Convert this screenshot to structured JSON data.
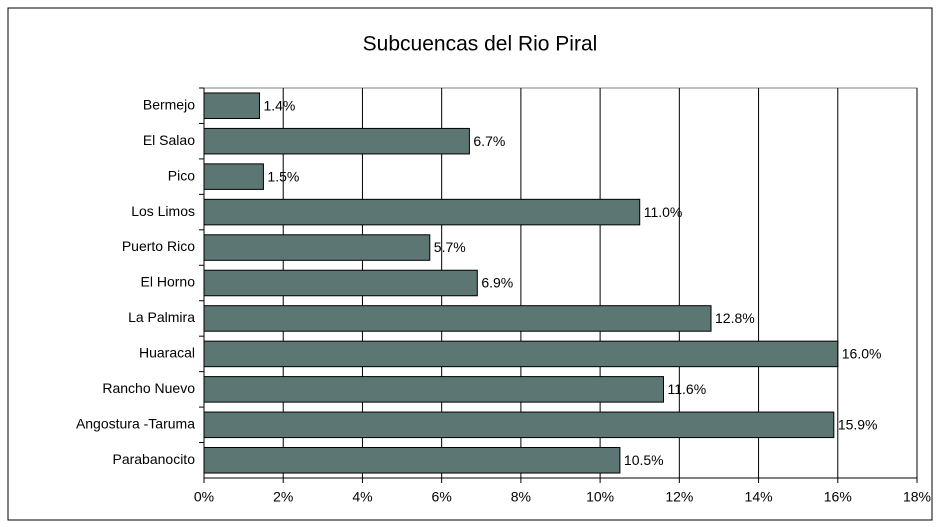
{
  "chart_data": {
    "type": "bar",
    "orientation": "horizontal",
    "title": "Subcuencas del Rio Piral",
    "categories": [
      "Bermejo",
      "El Salao",
      "Pico",
      "Los Limos",
      "Puerto Rico",
      "El Horno",
      "La Palmira",
      "Huaracal",
      "Rancho Nuevo",
      "Angostura -Taruma",
      "Parabanocito"
    ],
    "values": [
      1.4,
      6.7,
      1.5,
      11.0,
      5.7,
      6.9,
      12.8,
      16.0,
      11.6,
      15.9,
      10.5
    ],
    "value_labels": [
      "1.4%",
      "6.7%",
      "1.5%",
      "11.0%",
      "5.7%",
      "6.9%",
      "12.8%",
      "16.0%",
      "11.6%",
      "15.9%",
      "10.5%"
    ],
    "color": "#5c7674",
    "xlim": [
      0,
      18
    ],
    "xticks": [
      {
        "value": 0,
        "label": "0%"
      },
      {
        "value": 2,
        "label": "2%"
      },
      {
        "value": 4,
        "label": "4%"
      },
      {
        "value": 6,
        "label": "6%"
      },
      {
        "value": 8,
        "label": "8%"
      },
      {
        "value": 10,
        "label": "10%"
      },
      {
        "value": 12,
        "label": "12%"
      },
      {
        "value": 14,
        "label": "14%"
      },
      {
        "value": 16,
        "label": "16%"
      },
      {
        "value": 18,
        "label": "18%"
      }
    ],
    "grid": true
  }
}
